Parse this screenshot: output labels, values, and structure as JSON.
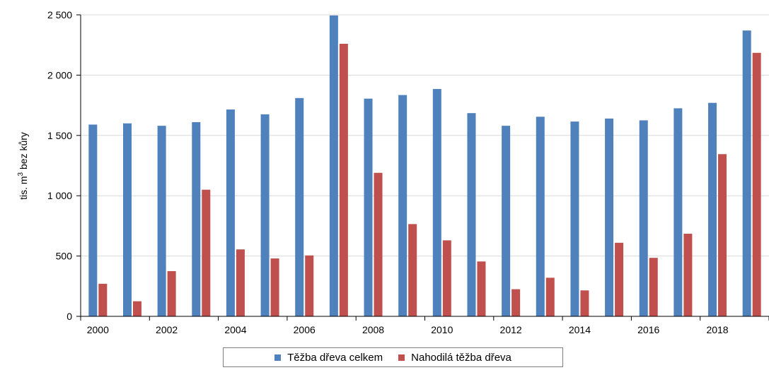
{
  "chart_data": {
    "type": "bar",
    "title": "",
    "xlabel": "",
    "ylabel_pre": "tis. m",
    "ylabel_sup": "3",
    "ylabel_post": " bez kůry",
    "ylim": [
      0,
      2500
    ],
    "yticks": [
      0,
      500,
      1000,
      1500,
      2000,
      2500
    ],
    "ytick_labels": [
      "0",
      "500",
      "1 000",
      "1 500",
      "2 000",
      "2 500"
    ],
    "categories": [
      "2000",
      "2001",
      "2002",
      "2003",
      "2004",
      "2005",
      "2006",
      "2007",
      "2008",
      "2009",
      "2010",
      "2011",
      "2012",
      "2013",
      "2014",
      "2015",
      "2016",
      "2017",
      "2018",
      "2019"
    ],
    "xtick_labels": [
      "2000",
      "2002",
      "2004",
      "2006",
      "2008",
      "2010",
      "2012",
      "2014",
      "2016",
      "2018"
    ],
    "grid": true,
    "legend_position": "bottom",
    "series": [
      {
        "name": "Těžba dřeva celkem",
        "color": "#4f81bd",
        "values": [
          1590,
          1600,
          1580,
          1610,
          1715,
          1675,
          1810,
          2495,
          1805,
          1835,
          1885,
          1685,
          1580,
          1655,
          1615,
          1640,
          1625,
          1725,
          1770,
          2370
        ]
      },
      {
        "name": "Nahodilá těžba dřeva",
        "color": "#c0504d",
        "values": [
          270,
          125,
          375,
          1050,
          555,
          480,
          505,
          2260,
          1190,
          765,
          630,
          455,
          225,
          320,
          215,
          610,
          485,
          685,
          1345,
          2185
        ]
      }
    ]
  }
}
